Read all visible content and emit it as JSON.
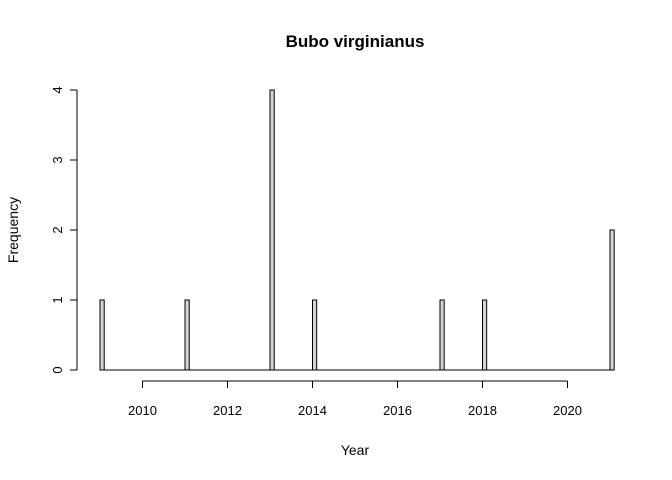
{
  "chart_data": {
    "type": "bar",
    "title": "Bubo virginianus",
    "xlabel": "Year",
    "ylabel": "Frequency",
    "x": [
      2009,
      2011,
      2013,
      2014,
      2017,
      2018,
      2021
    ],
    "values": [
      1,
      1,
      4,
      1,
      1,
      1,
      2
    ],
    "xlim": [
      2009,
      2021
    ],
    "ylim": [
      0,
      4
    ],
    "xticks": [
      2010,
      2012,
      2014,
      2016,
      2018,
      2020
    ],
    "yticks": [
      0,
      1,
      2,
      3,
      4
    ],
    "bar_color": "#d3d3d3",
    "grid": false,
    "legend": "none"
  }
}
